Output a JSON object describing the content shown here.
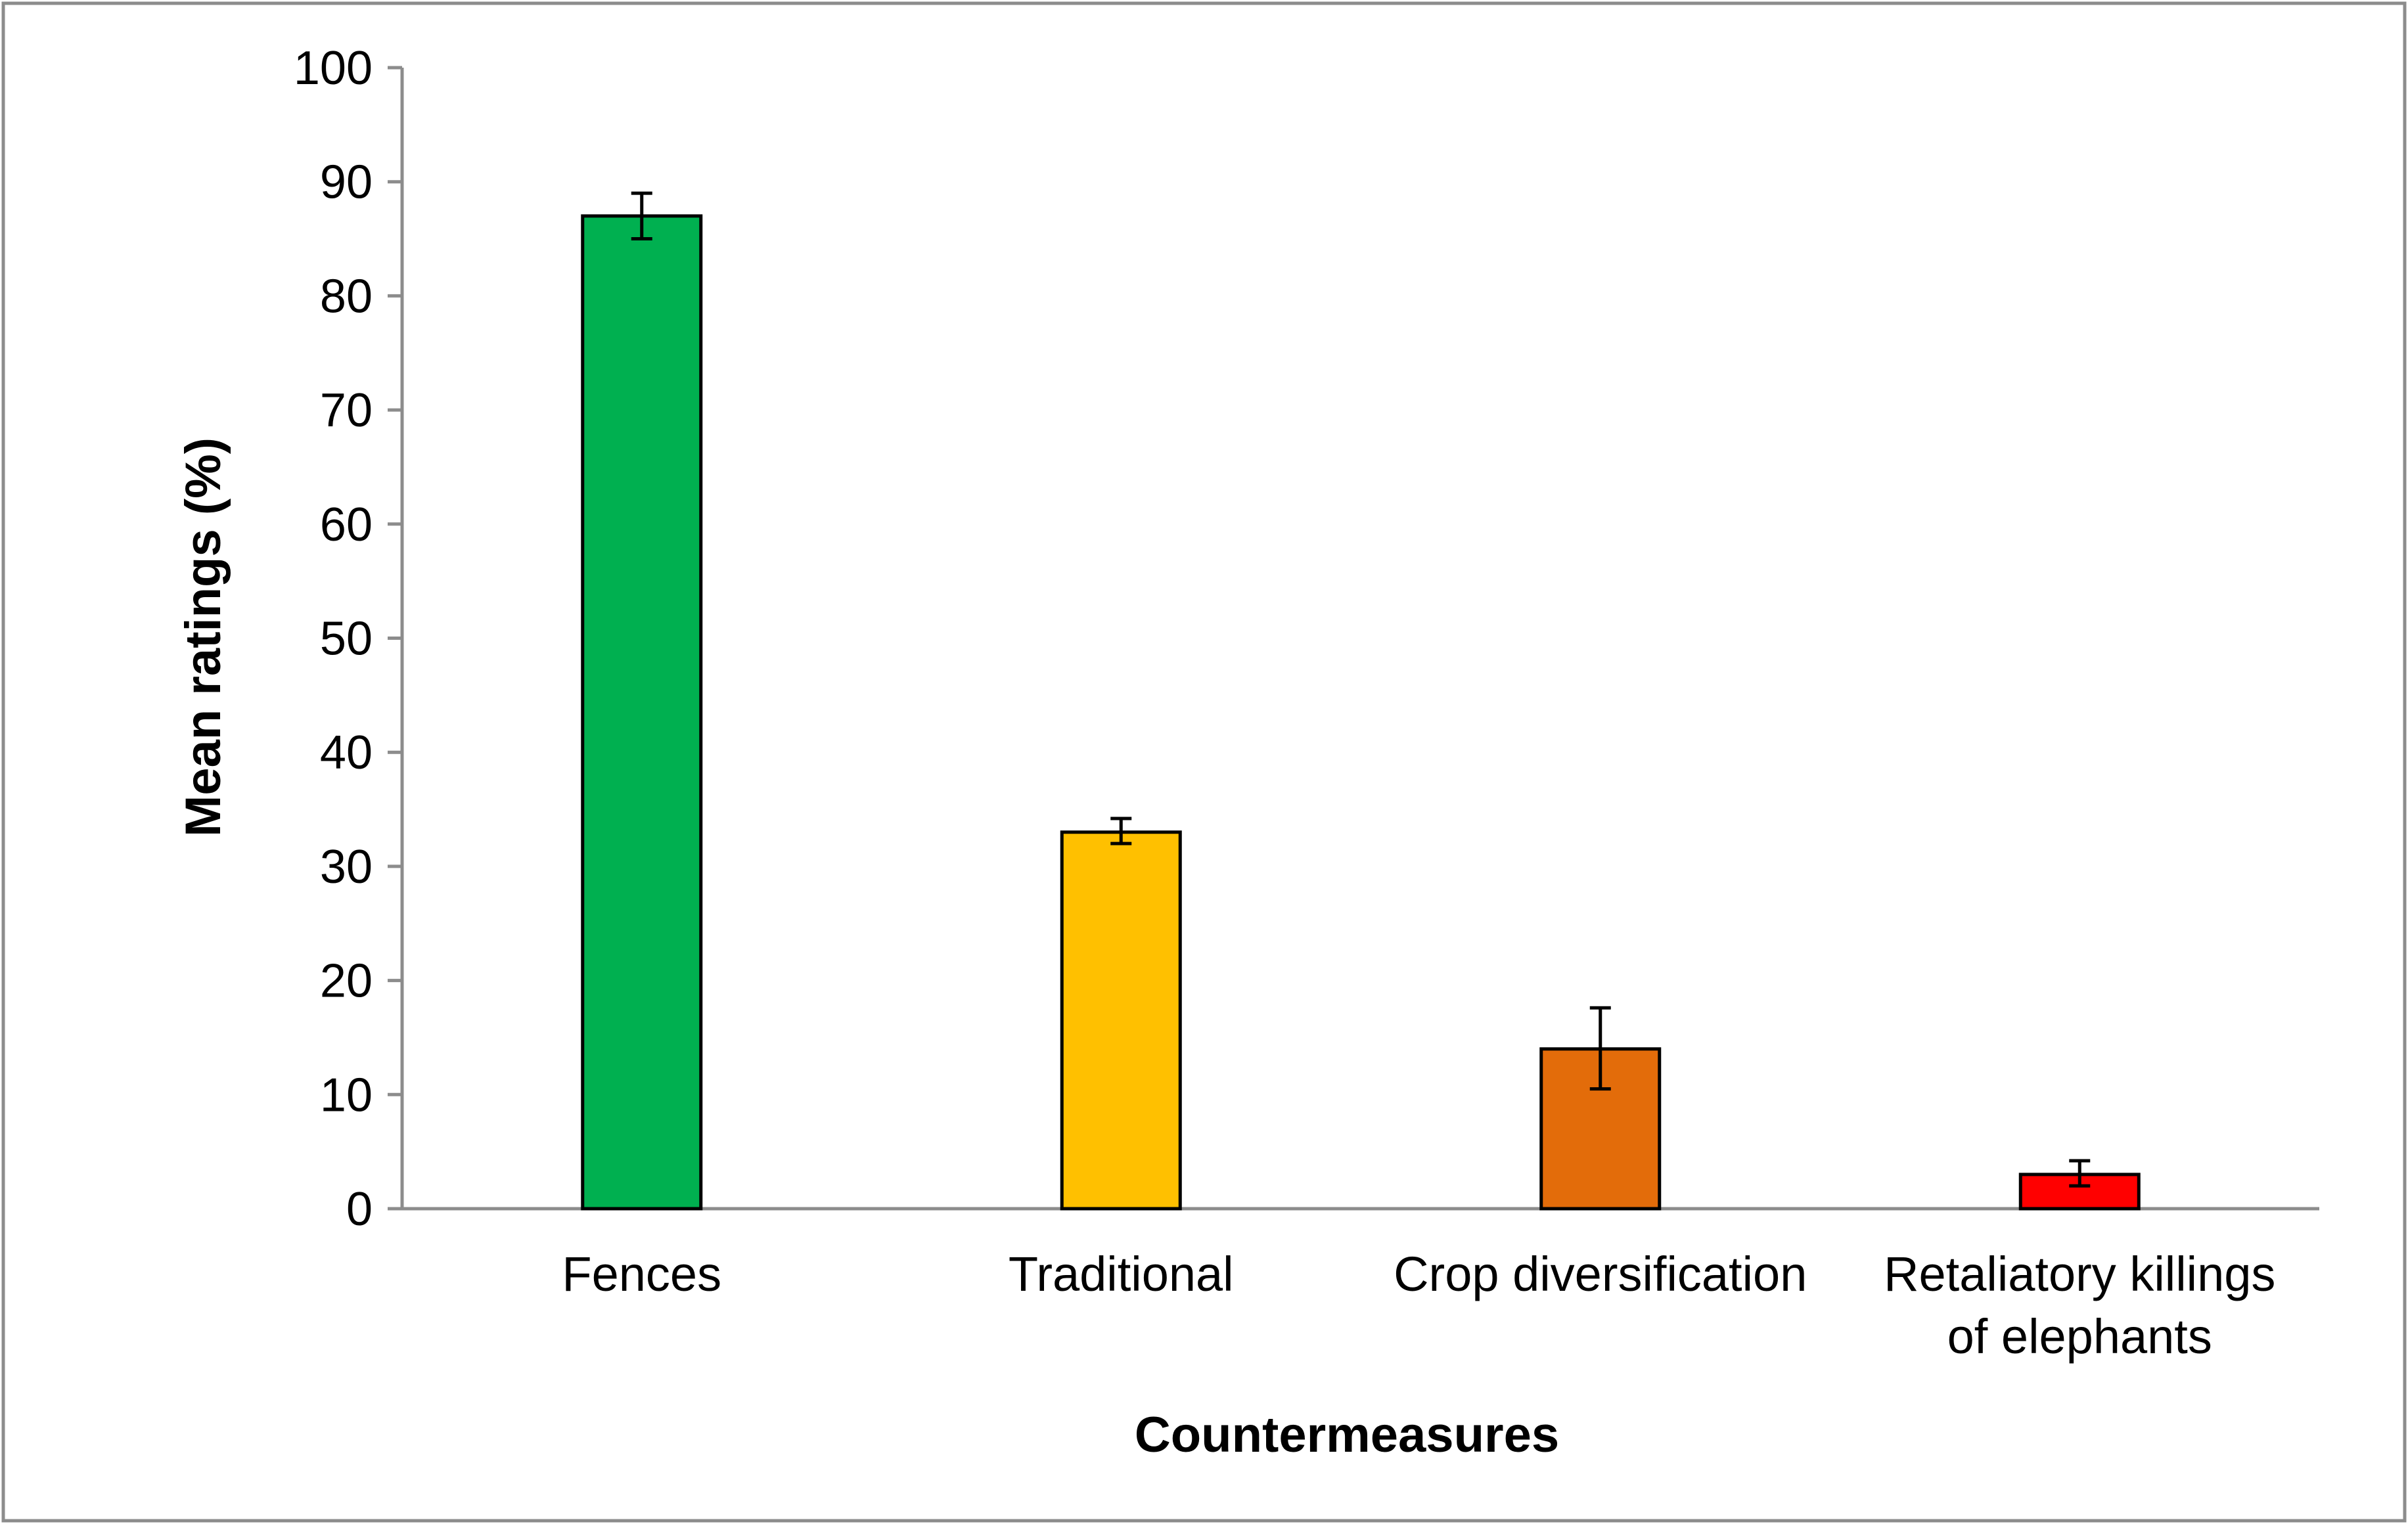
{
  "chart_data": {
    "type": "bar",
    "title": "",
    "xlabel": "Countermeasures",
    "ylabel": "Mean ratings (%)",
    "ylim": [
      0,
      100
    ],
    "ytick_step": 10,
    "yticks": [
      "0",
      "10",
      "20",
      "30",
      "40",
      "50",
      "60",
      "70",
      "80",
      "90",
      "100"
    ],
    "grid": false,
    "legend": "none",
    "categories": [
      {
        "lines": [
          "Fences"
        ]
      },
      {
        "lines": [
          "Traditional"
        ]
      },
      {
        "lines": [
          "Crop diversification"
        ]
      },
      {
        "lines": [
          "Retaliatory killings",
          "of elephants"
        ]
      }
    ],
    "values": [
      87,
      33,
      14,
      3
    ],
    "error_low": [
      85,
      32,
      10.5,
      2
    ],
    "error_high": [
      89,
      34.2,
      17.6,
      4.2
    ],
    "colors": [
      "#00B050",
      "#FFC000",
      "#E36C0A",
      "#FF0000"
    ],
    "axis_color": "#8C8C8C",
    "frame_color": "#8C8C8C",
    "bar_edge_color": "#000000"
  }
}
